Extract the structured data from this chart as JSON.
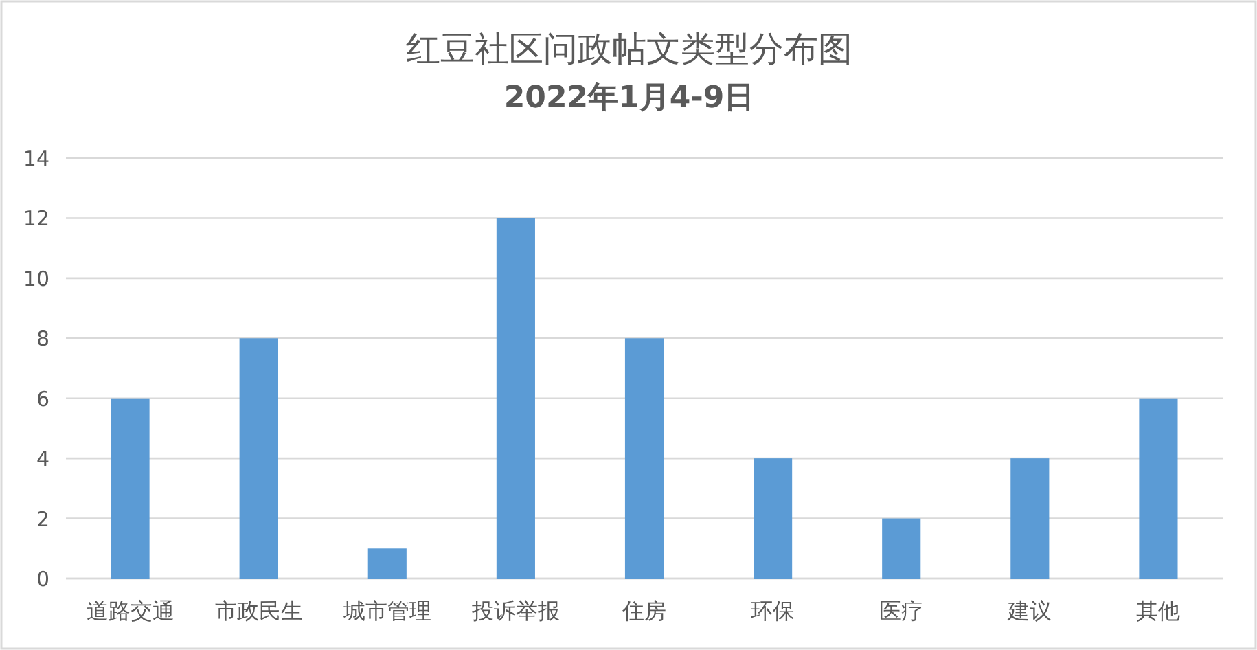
{
  "chart_data": {
    "type": "bar",
    "title": "红豆社区问政帖文类型分布图",
    "subtitle": "2022年1月4-9日",
    "categories": [
      "道路交通",
      "市政民生",
      "城市管理",
      "投诉举报",
      "住房",
      "环保",
      "医疗",
      "建议",
      "其他"
    ],
    "values": [
      6,
      8,
      1,
      12,
      8,
      4,
      2,
      4,
      6
    ],
    "color": "#5b9bd5",
    "ylim": [
      0,
      14
    ],
    "yticks": [
      0,
      2,
      4,
      6,
      8,
      10,
      12,
      14
    ],
    "grid": "y"
  }
}
